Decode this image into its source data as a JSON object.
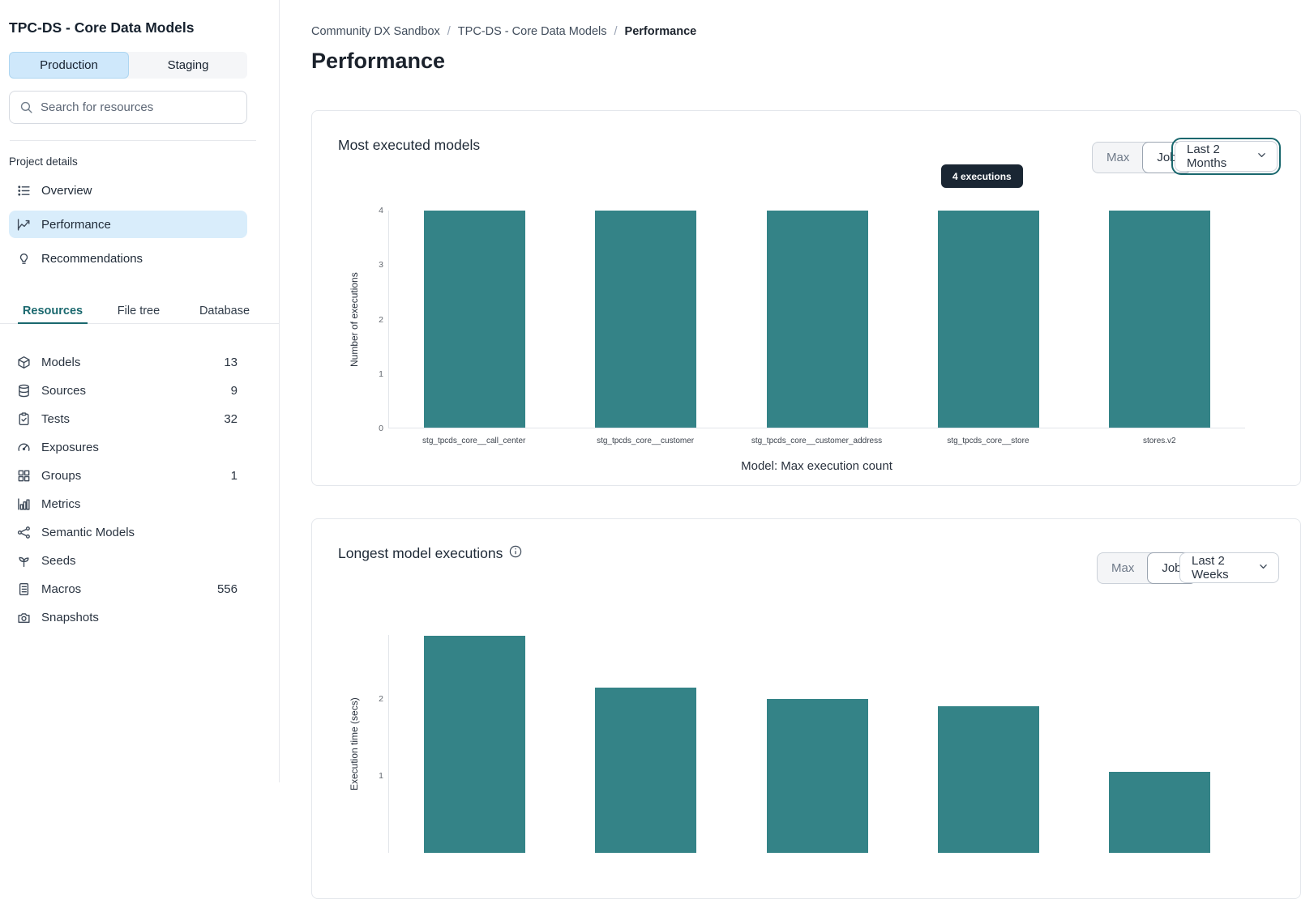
{
  "sidebar": {
    "title": "TPC-DS - Core Data Models",
    "env_tabs": [
      {
        "label": "Production",
        "active": true
      },
      {
        "label": "Staging",
        "active": false
      }
    ],
    "search": {
      "placeholder": "Search for resources"
    },
    "section_label": "Project details",
    "nav": [
      {
        "label": "Overview",
        "active": false
      },
      {
        "label": "Performance",
        "active": true
      },
      {
        "label": "Recommendations",
        "active": false
      }
    ],
    "resource_tabs": [
      {
        "label": "Resources",
        "active": true
      },
      {
        "label": "File tree",
        "active": false
      },
      {
        "label": "Database",
        "active": false
      }
    ],
    "resources": [
      {
        "label": "Models",
        "count": "13"
      },
      {
        "label": "Sources",
        "count": "9"
      },
      {
        "label": "Tests",
        "count": "32"
      },
      {
        "label": "Exposures",
        "count": ""
      },
      {
        "label": "Groups",
        "count": "1"
      },
      {
        "label": "Metrics",
        "count": ""
      },
      {
        "label": "Semantic Models",
        "count": ""
      },
      {
        "label": "Seeds",
        "count": ""
      },
      {
        "label": "Macros",
        "count": "556"
      },
      {
        "label": "Snapshots",
        "count": ""
      }
    ]
  },
  "breadcrumb": [
    "Community DX Sandbox",
    "TPC-DS - Core Data Models",
    "Performance"
  ],
  "page_title": "Performance",
  "cards": [
    {
      "title": "Most executed models",
      "toggle": [
        "Max",
        "Job"
      ],
      "toggle_selected": "Job",
      "range_selector": "Last 2 Months"
    },
    {
      "title": "Longest model executions",
      "toggle": [
        "Max",
        "Job"
      ],
      "toggle_selected": "Job",
      "range_selector": "Last 2 Weeks"
    }
  ],
  "colors": {
    "bar": "#348387",
    "accent_teal": "#1a686e",
    "active_nav_bg": "#d9edfb",
    "tooltip_bg": "#1a2633"
  },
  "chart_data": [
    {
      "type": "bar",
      "title": "Most executed models",
      "categories": [
        "stg_tpcds_core__call_center",
        "stg_tpcds_core__customer",
        "stg_tpcds_core__customer_address",
        "stg_tpcds_core__store",
        "stores.v2"
      ],
      "values": [
        4,
        4,
        4,
        4,
        4
      ],
      "xlabel": "Model: Max execution count",
      "ylabel": "Number of executions",
      "ylim": [
        0,
        4
      ],
      "yticks": [
        0,
        1,
        2,
        3,
        4
      ],
      "grid": false,
      "bar_color": "#348387",
      "tooltip": {
        "text": "4 executions",
        "bar_index": 3
      }
    },
    {
      "type": "bar",
      "title": "Longest model executions",
      "values": [
        2.82,
        2.15,
        2.0,
        1.9,
        1.05
      ],
      "ylabel": "Execution time (secs)",
      "ylim": [
        0,
        2.83
      ],
      "yticks": [
        1,
        2
      ],
      "grid": false,
      "bar_color": "#348387",
      "clipped_by_viewport": true
    }
  ]
}
